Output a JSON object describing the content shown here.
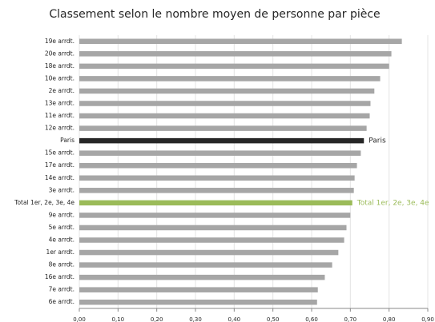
{
  "chart_data": {
    "type": "hbar",
    "title": "Classement selon le nombre moyen de personne par pièce",
    "categories": [
      "19e arrdt.",
      "20e arrdt.",
      "18e arrdt.",
      "10e arrdt.",
      "2e arrdt.",
      "13e arrdt.",
      "11e arrdt.",
      "12e arrdt.",
      "Paris",
      "15e arrdt.",
      "17e arrdt.",
      "14e arrdt.",
      "3e arrdt.",
      "Total 1er, 2e, 3e, 4e",
      "9e arrdt.",
      "5e arrdt.",
      "4e arrdt.",
      "1er arrdt.",
      "8e arrdt.",
      "16e arrdt.",
      "7e arrdt.",
      "6e arrdt."
    ],
    "values": [
      0.833,
      0.806,
      0.8,
      0.777,
      0.762,
      0.752,
      0.75,
      0.742,
      0.735,
      0.727,
      0.717,
      0.711,
      0.709,
      0.705,
      0.7,
      0.69,
      0.684,
      0.669,
      0.653,
      0.634,
      0.616,
      0.614
    ],
    "colors": [
      "#a6a6a6",
      "#a6a6a6",
      "#a6a6a6",
      "#a6a6a6",
      "#a6a6a6",
      "#a6a6a6",
      "#a6a6a6",
      "#a6a6a6",
      "#262626",
      "#a6a6a6",
      "#a6a6a6",
      "#a6a6a6",
      "#a6a6a6",
      "#9bbb59",
      "#a6a6a6",
      "#a6a6a6",
      "#a6a6a6",
      "#a6a6a6",
      "#a6a6a6",
      "#a6a6a6",
      "#a6a6a6",
      "#a6a6a6"
    ],
    "labeled": [
      "Paris",
      "Total 1er, 2e, 3e, 4e"
    ],
    "xlim": [
      0,
      0.9
    ],
    "xticks": [
      {
        "value": 0,
        "label": "0,00"
      },
      {
        "value": 0.1,
        "label": "0,10"
      },
      {
        "value": 0.2,
        "label": "0,20"
      },
      {
        "value": 0.3,
        "label": "0,30"
      },
      {
        "value": 0.4,
        "label": "0,40"
      },
      {
        "value": 0.5,
        "label": "0,50"
      },
      {
        "value": 0.6,
        "label": "0,60"
      },
      {
        "value": 0.7,
        "label": "0,70"
      },
      {
        "value": 0.8,
        "label": "0,80"
      },
      {
        "value": 0.9,
        "label": "0,90"
      }
    ],
    "grid": true
  }
}
